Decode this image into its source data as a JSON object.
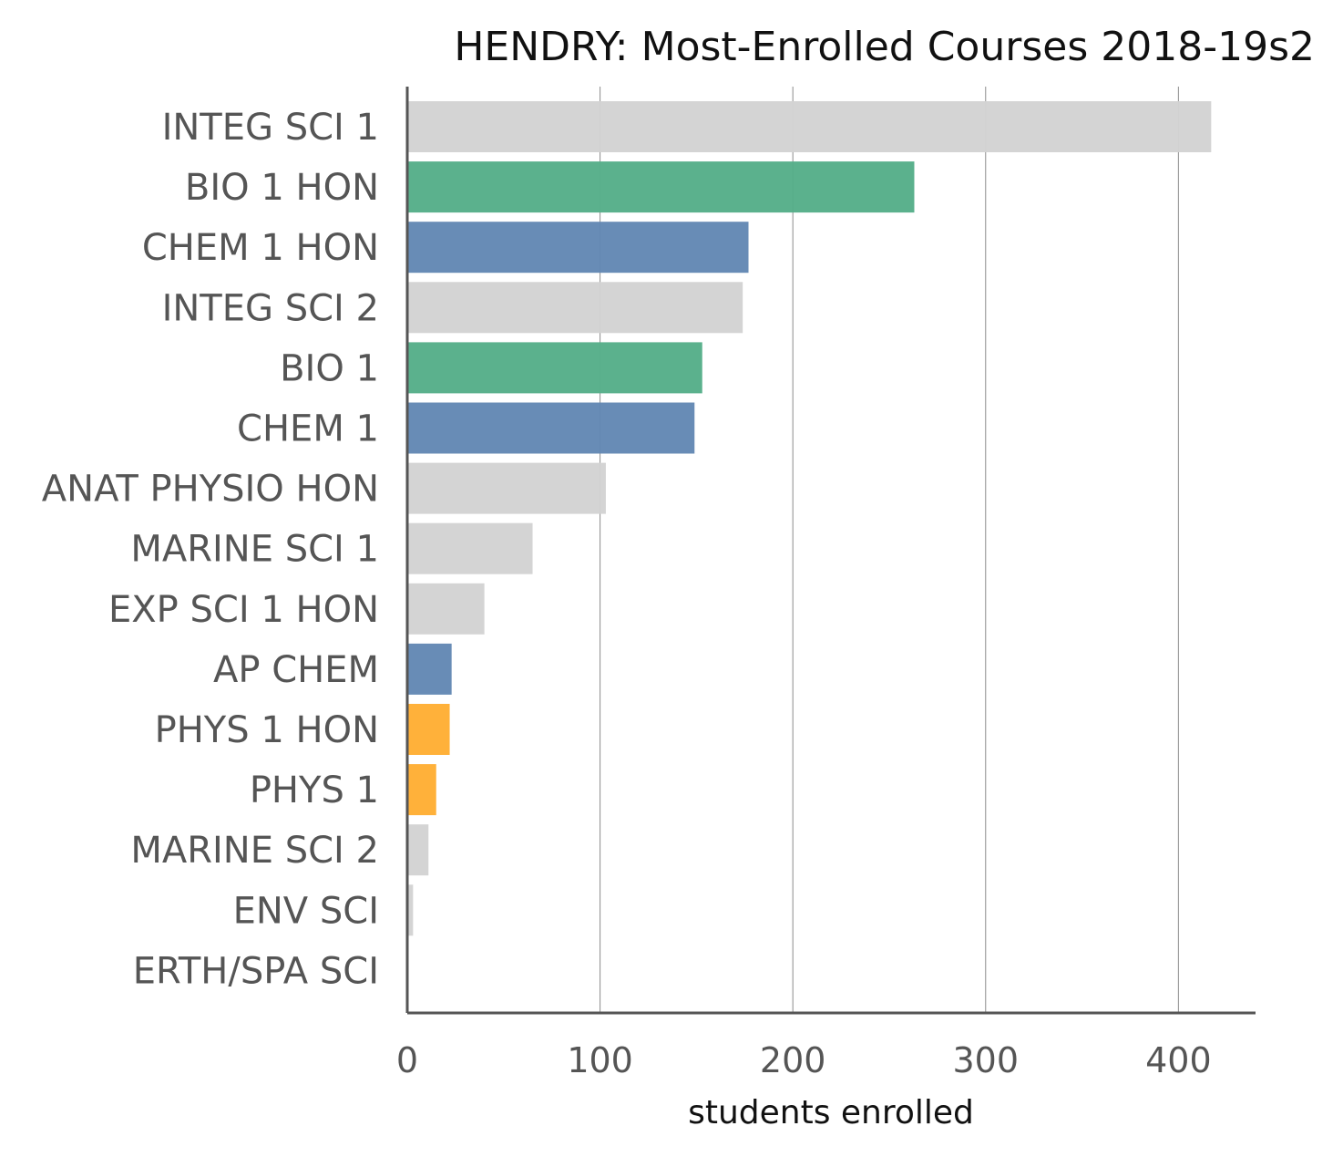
{
  "chart_data": {
    "type": "bar",
    "orientation": "horizontal",
    "title": "HENDRY: Most-Enrolled Courses 2018-19s2",
    "xlabel": "students enrolled",
    "ylabel": "",
    "xlim": [
      0,
      440
    ],
    "xticks": [
      0,
      100,
      200,
      300,
      400
    ],
    "grid": "vertical",
    "categories": [
      "INTEG SCI 1",
      "BIO 1 HON",
      "CHEM 1 HON",
      "INTEG SCI 2",
      "BIO 1",
      "CHEM 1",
      "ANAT PHYSIO HON",
      "MARINE SCI 1",
      "EXP SCI 1 HON",
      "AP CHEM",
      "PHYS 1 HON",
      "PHYS 1",
      "MARINE SCI 2",
      "ENV SCI",
      "ERTH/SPA SCI"
    ],
    "values": [
      417,
      263,
      177,
      174,
      153,
      149,
      103,
      65,
      40,
      23,
      22,
      15,
      11,
      3,
      0
    ],
    "colors": [
      "#d3d3d3",
      "#56ae89",
      "#6388b4",
      "#d3d3d3",
      "#56ae89",
      "#6388b4",
      "#d3d3d3",
      "#d3d3d3",
      "#d3d3d3",
      "#6388b4",
      "#ffae34",
      "#ffae34",
      "#d3d3d3",
      "#d3d3d3",
      "#d3d3d3"
    ]
  }
}
